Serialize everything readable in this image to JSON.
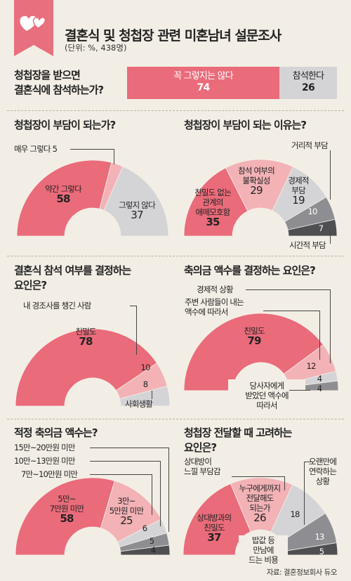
{
  "header": {
    "title": "결혼식 및 청첩장 관련 미혼남녀 설문조사",
    "unit": "(단위: %, 438명)"
  },
  "source": "자료: 결혼정보회사 듀오",
  "colors": {
    "pink": "#ea6b7a",
    "light_pink": "#f2b2b6",
    "light_gray": "#d4d4d7",
    "mid_gray": "#8e8e92",
    "dark_gray": "#4f4f52",
    "logo": "#e8707e",
    "background": "#f3eee5"
  },
  "icons": {
    "logo": "hearts-ribbon-icon"
  },
  "chart_data": [
    {
      "id": "attend",
      "type": "bar",
      "title": "청첩장을 받으면 결혼식에 참석하는가?",
      "categories": [
        "꼭 그렇지는 않다",
        "참석한다"
      ],
      "values": [
        74,
        26
      ]
    },
    {
      "id": "burden",
      "type": "pie",
      "title": "청첩장이 부담이 되는가?",
      "categories": [
        "매우 그렇다",
        "약간 그렇다",
        "그렇지 않다"
      ],
      "values": [
        5,
        58,
        37
      ]
    },
    {
      "id": "reasons",
      "type": "pie",
      "title": "청첩장이 부담이 되는 이유는?",
      "categories": [
        "친밀도 없는 관계의 애매모호함",
        "참석 여부의 불확실성",
        "경제적 부담",
        "거리적 부담",
        "시간적 부담"
      ],
      "values": [
        35,
        29,
        19,
        10,
        7
      ]
    },
    {
      "id": "decide",
      "type": "pie",
      "title": "결혼식 참석 여부를 결정하는 요인은?",
      "categories": [
        "친밀도",
        "내 경조사를 챙긴 사람",
        "사회생활"
      ],
      "values": [
        78,
        10,
        8
      ]
    },
    {
      "id": "money_factor",
      "type": "pie",
      "title": "축의금 액수를 결정하는 요인은?",
      "categories": [
        "친밀도",
        "주변 사람들이 내는 액수에 따라서",
        "경제적 상황",
        "당사자에게 받았던 액수에 따라서"
      ],
      "values": [
        79,
        12,
        4,
        4
      ]
    },
    {
      "id": "amount",
      "type": "pie",
      "title": "적정 축의금 액수는?",
      "categories": [
        "5만~7만원 미만",
        "3만~5만원 미만",
        "7만~10만원 미만",
        "10만~13만원 미만",
        "15만~20만원 미만"
      ],
      "values": [
        58,
        25,
        6,
        5,
        4
      ]
    },
    {
      "id": "consider",
      "type": "pie",
      "title": "청첩장 전달할 때 고려하는 요인은?",
      "categories": [
        "상대방과의 친밀도",
        "누구에게까지 전달해도 되는가",
        "상대방이 느낄 부담감",
        "오랜만에 연락하는 상황",
        "밥값 등 만남에 드는 비용"
      ],
      "values": [
        37,
        26,
        18,
        13,
        5
      ]
    }
  ],
  "text": {
    "q1a": "청첩장을 받으면",
    "q1b": "결혼식에 참석하는가?",
    "bar1_label": "꼭 그렇지는 않다",
    "bar1_value": "74",
    "bar2_label": "참석한다",
    "bar2_value": "26",
    "q2": "청첩장이 부담이 되는가?",
    "q2_s1_label": "매우 그렇다",
    "q2_s1_value": "5",
    "q2_s2_label": "약간 그렇다",
    "q2_s2_value": "58",
    "q2_s3_label": "그렇지 않다",
    "q2_s3_value": "37",
    "q3": "청첩장이 부담이 되는 이유는?",
    "q3_s1_l1": "친밀도 없는",
    "q3_s1_l2": "관계의",
    "q3_s1_l3": "애매모호함",
    "q3_s1_value": "35",
    "q3_s2_l1": "참석 여부의",
    "q3_s2_l2": "불확실성",
    "q3_s2_value": "29",
    "q3_s3_l1": "경제적",
    "q3_s3_l2": "부담",
    "q3_s3_value": "19",
    "q3_s4_label": "거리적 부담",
    "q3_s4_value": "10",
    "q3_s5_label": "시간적 부담",
    "q3_s5_value": "7",
    "q4a": "결혼식 참석 여부를 결정하는",
    "q4b": "요인은?",
    "q4_s1_label": "친밀도",
    "q4_s1_value": "78",
    "q4_s2_label": "내 경조사를 챙긴 사람",
    "q4_s2_value": "10",
    "q4_s3_label": "사회생활",
    "q4_s3_value": "8",
    "q5": "축의금 액수를 결정하는 요인은?",
    "q5_s1_label": "친밀도",
    "q5_s1_value": "79",
    "q5_s2_l1": "주변 사람들이 내는",
    "q5_s2_l2": "액수에 따라서",
    "q5_s2_value": "12",
    "q5_s3_label": "경제적 상황",
    "q5_s3_value": "4",
    "q5_s4_l1": "당사자에게",
    "q5_s4_l2": "받았던 액수에",
    "q5_s4_l3": "따라서",
    "q5_s4_value": "4",
    "q6": "적정 축의금 액수는?",
    "q6_s1_l1": "5만~",
    "q6_s1_l2": "7만원 미만",
    "q6_s1_value": "58",
    "q6_s2_l1": "3만~",
    "q6_s2_l2": "5만원 미만",
    "q6_s2_value": "25",
    "q6_s3_label": "7만~10만원 미만",
    "q6_s3_value": "6",
    "q6_s4_label": "10만~13만원 미만",
    "q6_s4_value": "5",
    "q6_s5_label": "15만~20만원 미만",
    "q6_s5_value": "4",
    "q7a": "청첩장 전달할 때 고려하는",
    "q7b": "요인은?",
    "q7_s1_l1": "상대방과의",
    "q7_s1_l2": "친밀도",
    "q7_s1_value": "37",
    "q7_s2_l1": "누구에게까지",
    "q7_s2_l2": "전달해도",
    "q7_s2_l3": "되는가",
    "q7_s2_value": "26",
    "q7_s3_l1": "상대방이",
    "q7_s3_l2": "느낄 부담감",
    "q7_s3_value": "18",
    "q7_s4_l1": "오랜만에",
    "q7_s4_l2": "연락하는",
    "q7_s4_l3": "상황",
    "q7_s4_value": "13",
    "q7_s5_l1": "밥값 등",
    "q7_s5_l2": "만남에",
    "q7_s5_l3": "드는 비용",
    "q7_s5_value": "5"
  }
}
